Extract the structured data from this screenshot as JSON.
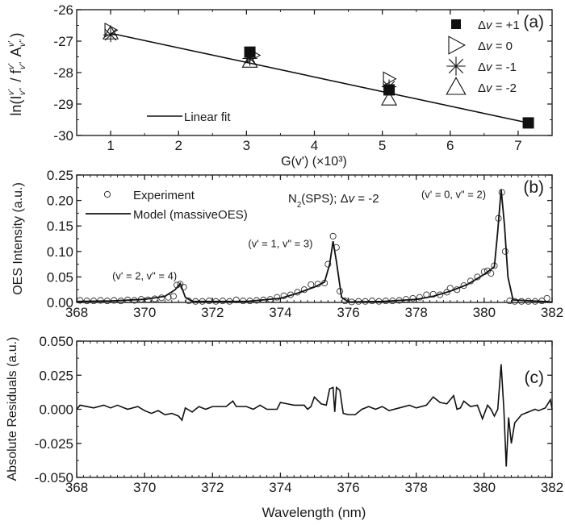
{
  "chart_data": [
    {
      "type": "scatter",
      "panel_label": "(a)",
      "xlabel": "G(v') (×10³)",
      "xlabel_parts": {
        "g": "G(",
        "v": "v'",
        "rest": ") (×10",
        "sup": "3",
        "close": ")"
      },
      "ylabel": "ln(I / f A)",
      "ylabel_parts": {
        "ln": "ln",
        "open": "(",
        "I": "I",
        "sub1": "v\"",
        "sup1": "v'",
        "slash": " / ",
        "f": "f",
        "sub2": "v\"",
        "sup2": "v'",
        "A": "A",
        "sub3": "v\"",
        "sup3": "v'",
        "close": ")"
      },
      "xlim": [
        0.5,
        7.5
      ],
      "ylim": [
        -30,
        -26
      ],
      "xticks": [
        1,
        2,
        3,
        4,
        5,
        6,
        7
      ],
      "xtick_labels": [
        "1",
        "2",
        "3",
        "4",
        "5",
        "6",
        "7"
      ],
      "yticks": [
        -26,
        -27,
        -28,
        -29,
        -30
      ],
      "ytick_labels": [
        "-26",
        "-27",
        "-28",
        "-29",
        "-30"
      ],
      "series": [
        {
          "name": "Δv = +1",
          "label_prefix": "Δ",
          "label_v": "v",
          "label_rest": " = +1",
          "marker": "filled-square",
          "x": [
            3.05,
            5.1,
            7.15
          ],
          "y": [
            -27.35,
            -28.55,
            -29.6
          ]
        },
        {
          "name": "Δv = 0",
          "label_prefix": "Δ",
          "label_v": "v",
          "label_rest": " = 0",
          "marker": "right-triangle",
          "x": [
            1.0,
            3.1,
            5.1
          ],
          "y": [
            -26.65,
            -27.45,
            -28.2
          ]
        },
        {
          "name": "Δv = -1",
          "label_prefix": "Δ",
          "label_v": "v",
          "label_rest": " = -1",
          "marker": "asterisk",
          "x": [
            1.0,
            3.05,
            5.1
          ],
          "y": [
            -26.8,
            -27.55,
            -28.45
          ]
        },
        {
          "name": "Δv = -2",
          "label_prefix": "Δ",
          "label_v": "v",
          "label_rest": " = -2",
          "marker": "up-triangle",
          "x": [
            1.0,
            3.05,
            5.1
          ],
          "y": [
            -26.75,
            -27.65,
            -28.85
          ]
        }
      ],
      "fit": {
        "name": "Linear fit",
        "x": [
          1.0,
          7.15
        ],
        "y": [
          -26.75,
          -29.6
        ]
      }
    },
    {
      "type": "line",
      "panel_label": "(b)",
      "ylabel": "OES Intensity (a.u.)",
      "xlim": [
        368,
        382
      ],
      "ylim": [
        0,
        0.25
      ],
      "xticks": [
        368,
        370,
        372,
        374,
        376,
        378,
        380,
        382
      ],
      "xtick_labels": [
        "368",
        "370",
        "372",
        "374",
        "376",
        "378",
        "380",
        "382"
      ],
      "yticks": [
        0,
        0.05,
        0.1,
        0.15,
        0.2,
        0.25
      ],
      "ytick_labels": [
        "0.00",
        "0.05",
        "0.10",
        "0.15",
        "0.20",
        "0.25"
      ],
      "title_parts": {
        "n": "N",
        "sub": "2",
        "rest": "(SPS); Δ",
        "v": "v",
        "end": " = -2"
      },
      "annotations": [
        {
          "text": "(v' = 2, v\" = 4)",
          "x": 370.0,
          "y": 0.045
        },
        {
          "text": "(v' = 1, v\" = 3)",
          "x": 374.0,
          "y": 0.108
        },
        {
          "text": "(v' = 0, v\" = 2)",
          "x": 379.1,
          "y": 0.205
        }
      ],
      "legend": [
        "Experiment",
        "Model (massiveOES)"
      ],
      "experiment": [
        [
          368.1,
          0.004
        ],
        [
          368.3,
          0.003
        ],
        [
          368.5,
          0.003
        ],
        [
          368.7,
          0.004
        ],
        [
          368.9,
          0.003
        ],
        [
          369.1,
          0.004
        ],
        [
          369.3,
          0.003
        ],
        [
          369.5,
          0.005
        ],
        [
          369.7,
          0.004
        ],
        [
          369.9,
          0.006
        ],
        [
          370.1,
          0.005
        ],
        [
          370.3,
          0.007
        ],
        [
          370.5,
          0.009
        ],
        [
          370.7,
          0.01
        ],
        [
          370.85,
          0.012
        ],
        [
          370.95,
          0.034
        ],
        [
          371.05,
          0.036
        ],
        [
          371.15,
          0.03
        ],
        [
          371.3,
          0.003
        ],
        [
          371.5,
          0.002
        ],
        [
          371.7,
          0.002
        ],
        [
          371.9,
          0.003
        ],
        [
          372.1,
          0.002
        ],
        [
          372.3,
          0.003
        ],
        [
          372.5,
          0.002
        ],
        [
          372.7,
          0.005
        ],
        [
          372.9,
          0.003
        ],
        [
          373.1,
          0.003
        ],
        [
          373.3,
          0.004
        ],
        [
          373.5,
          0.005
        ],
        [
          373.7,
          0.006
        ],
        [
          373.9,
          0.01
        ],
        [
          374.1,
          0.013
        ],
        [
          374.3,
          0.015
        ],
        [
          374.5,
          0.02
        ],
        [
          374.7,
          0.025
        ],
        [
          374.9,
          0.035
        ],
        [
          375.1,
          0.036
        ],
        [
          375.3,
          0.038
        ],
        [
          375.4,
          0.075
        ],
        [
          375.55,
          0.13
        ],
        [
          375.65,
          0.108
        ],
        [
          375.75,
          0.022
        ],
        [
          375.9,
          0.003
        ],
        [
          376.1,
          0.001
        ],
        [
          376.3,
          0.002
        ],
        [
          376.5,
          0.002
        ],
        [
          376.7,
          0.003
        ],
        [
          376.9,
          0.002
        ],
        [
          377.1,
          0.003
        ],
        [
          377.3,
          0.003
        ],
        [
          377.5,
          0.004
        ],
        [
          377.7,
          0.006
        ],
        [
          377.9,
          0.008
        ],
        [
          378.1,
          0.01
        ],
        [
          378.3,
          0.015
        ],
        [
          378.5,
          0.016
        ],
        [
          378.7,
          0.015
        ],
        [
          378.9,
          0.02
        ],
        [
          379.0,
          0.028
        ],
        [
          379.2,
          0.025
        ],
        [
          379.4,
          0.033
        ],
        [
          379.6,
          0.042
        ],
        [
          379.8,
          0.05
        ],
        [
          380.0,
          0.06
        ],
        [
          380.1,
          0.062
        ],
        [
          380.2,
          0.057
        ],
        [
          380.3,
          0.072
        ],
        [
          380.42,
          0.165
        ],
        [
          380.52,
          0.216
        ],
        [
          380.62,
          0.1
        ],
        [
          380.75,
          0.003
        ],
        [
          380.9,
          0.002
        ],
        [
          381.1,
          0.002
        ],
        [
          381.3,
          0.002
        ],
        [
          381.5,
          0.002
        ],
        [
          381.7,
          0.003
        ],
        [
          381.85,
          0.008
        ]
      ],
      "model": [
        [
          368,
          0.002
        ],
        [
          369,
          0.003
        ],
        [
          370,
          0.006
        ],
        [
          370.6,
          0.012
        ],
        [
          370.9,
          0.025
        ],
        [
          371.05,
          0.037
        ],
        [
          371.2,
          0.01
        ],
        [
          371.4,
          0.002
        ],
        [
          373,
          0.002
        ],
        [
          374,
          0.008
        ],
        [
          374.5,
          0.018
        ],
        [
          375,
          0.03
        ],
        [
          375.3,
          0.04
        ],
        [
          375.45,
          0.075
        ],
        [
          375.55,
          0.12
        ],
        [
          375.65,
          0.08
        ],
        [
          375.8,
          0.01
        ],
        [
          376,
          0.001
        ],
        [
          377,
          0.002
        ],
        [
          378,
          0.006
        ],
        [
          378.5,
          0.012
        ],
        [
          379,
          0.022
        ],
        [
          379.5,
          0.035
        ],
        [
          380,
          0.055
        ],
        [
          380.3,
          0.07
        ],
        [
          380.4,
          0.14
        ],
        [
          380.5,
          0.222
        ],
        [
          380.6,
          0.15
        ],
        [
          380.7,
          0.05
        ],
        [
          380.85,
          0.005
        ],
        [
          382,
          0.001
        ]
      ]
    },
    {
      "type": "line",
      "panel_label": "(c)",
      "xlabel": "Wavelength (nm)",
      "ylabel": "Absolute Residuals (a.u.)",
      "xlim": [
        368,
        382
      ],
      "ylim": [
        -0.05,
        0.05
      ],
      "xticks": [
        368,
        370,
        372,
        374,
        376,
        378,
        380,
        382
      ],
      "xtick_labels": [
        "368",
        "370",
        "372",
        "374",
        "376",
        "378",
        "380",
        "382"
      ],
      "yticks": [
        0.05,
        0.025,
        0,
        -0.025,
        -0.05
      ],
      "ytick_labels": [
        "0.050",
        "0.025",
        "0.000",
        "-0.025",
        "-0.050"
      ],
      "residuals": [
        [
          368,
          0
        ],
        [
          368.1,
          0.003
        ],
        [
          368.5,
          0.001
        ],
        [
          368.8,
          0.003
        ],
        [
          369,
          0.001
        ],
        [
          369.2,
          0.003
        ],
        [
          369.5,
          0.0
        ],
        [
          369.8,
          0.002
        ],
        [
          370,
          -0.001
        ],
        [
          370.2,
          -0.003
        ],
        [
          370.4,
          -0.001
        ],
        [
          370.6,
          -0.004
        ],
        [
          370.8,
          -0.003
        ],
        [
          371.0,
          -0.005
        ],
        [
          371.1,
          -0.008
        ],
        [
          371.2,
          0.001
        ],
        [
          371.4,
          -0.002
        ],
        [
          371.6,
          0.002
        ],
        [
          371.8,
          0.0
        ],
        [
          372,
          0.002
        ],
        [
          372.4,
          0.002
        ],
        [
          372.6,
          0.006
        ],
        [
          372.7,
          0.002
        ],
        [
          373,
          0.002
        ],
        [
          373.2,
          0.0
        ],
        [
          373.4,
          0.003
        ],
        [
          373.6,
          0.0
        ],
        [
          373.9,
          0.0
        ],
        [
          374,
          0.005
        ],
        [
          374.2,
          0.004
        ],
        [
          374.4,
          0.003
        ],
        [
          374.7,
          0.003
        ],
        [
          374.8,
          0.0
        ],
        [
          374.9,
          0.002
        ],
        [
          375,
          0.009
        ],
        [
          375.2,
          0.004
        ],
        [
          375.35,
          0.003
        ],
        [
          375.45,
          0.015
        ],
        [
          375.55,
          0.016
        ],
        [
          375.6,
          -0.002
        ],
        [
          375.65,
          0.016
        ],
        [
          375.75,
          0.014
        ],
        [
          375.85,
          -0.003
        ],
        [
          376.0,
          -0.004
        ],
        [
          376.2,
          -0.004
        ],
        [
          376.4,
          0.0
        ],
        [
          376.6,
          0.002
        ],
        [
          376.8,
          0.0
        ],
        [
          377,
          0.002
        ],
        [
          377.2,
          -0.001
        ],
        [
          377.5,
          0.001
        ],
        [
          377.8,
          0.003
        ],
        [
          378,
          0.001
        ],
        [
          378.3,
          0.003
        ],
        [
          378.5,
          0.009
        ],
        [
          378.7,
          0.005
        ],
        [
          378.9,
          0.004
        ],
        [
          379.1,
          0.01
        ],
        [
          379.2,
          0.0
        ],
        [
          379.3,
          0.001
        ],
        [
          379.4,
          0.006
        ],
        [
          379.6,
          0.002
        ],
        [
          379.8,
          0.003
        ],
        [
          379.95,
          -0.007
        ],
        [
          380.1,
          0.003
        ],
        [
          380.2,
          0.0
        ],
        [
          380.3,
          -0.005
        ],
        [
          380.4,
          0.0
        ],
        [
          380.5,
          0.033
        ],
        [
          380.58,
          0.0
        ],
        [
          380.65,
          -0.042
        ],
        [
          380.72,
          -0.006
        ],
        [
          380.8,
          -0.025
        ],
        [
          380.9,
          -0.01
        ],
        [
          381.1,
          -0.004
        ],
        [
          381.3,
          -0.002
        ],
        [
          381.5,
          0.0
        ],
        [
          381.6,
          -0.001
        ],
        [
          381.8,
          0.001
        ],
        [
          381.95,
          0.007
        ],
        [
          382,
          0.0
        ]
      ]
    }
  ]
}
